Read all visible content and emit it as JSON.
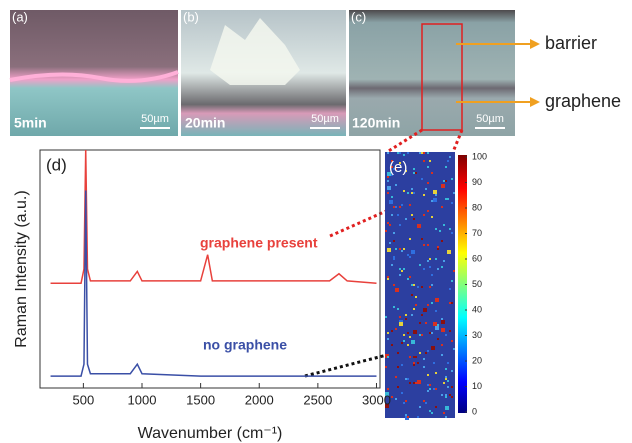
{
  "micrographs": [
    {
      "label": "(a)",
      "time": "5min",
      "scale": "50µm"
    },
    {
      "label": "(b)",
      "time": "20min",
      "scale": "50µm"
    },
    {
      "label": "(c)",
      "time": "120min",
      "scale": "50µm"
    }
  ],
  "annotations": {
    "barrier": "barrier",
    "graphene": "graphene"
  },
  "chart_data": [
    {
      "type": "line",
      "label": "(d)",
      "x_label": "Wavenumber (cm⁻¹)",
      "y_label": "Raman Intensity (a.u.)",
      "x": [
        220,
        480,
        505,
        520,
        535,
        560,
        900,
        960,
        1000,
        1500,
        1560,
        1600,
        2600,
        2680,
        2750,
        3000
      ],
      "series": [
        {
          "name": "graphene present",
          "color": "#e8413c",
          "values": [
            0.44,
            0.44,
            0.5,
            1.0,
            0.5,
            0.45,
            0.45,
            0.49,
            0.45,
            0.45,
            0.56,
            0.45,
            0.45,
            0.48,
            0.45,
            0.44
          ]
        },
        {
          "name": "no graphene",
          "color": "#3a4fa6",
          "values": [
            0.05,
            0.05,
            0.1,
            0.83,
            0.1,
            0.06,
            0.06,
            0.1,
            0.06,
            0.05,
            0.05,
            0.05,
            0.05,
            0.05,
            0.05,
            0.05
          ]
        }
      ],
      "xlim": [
        130,
        3030
      ],
      "ylim": [
        0,
        1
      ],
      "xticks": [
        500,
        1000,
        1500,
        2000,
        2500,
        3000
      ]
    },
    {
      "type": "heatmap",
      "label": "(e)",
      "ylim": [
        0,
        100
      ],
      "yticks": [
        0,
        10,
        20,
        30,
        40,
        50,
        60,
        70,
        80,
        90,
        100
      ]
    }
  ]
}
